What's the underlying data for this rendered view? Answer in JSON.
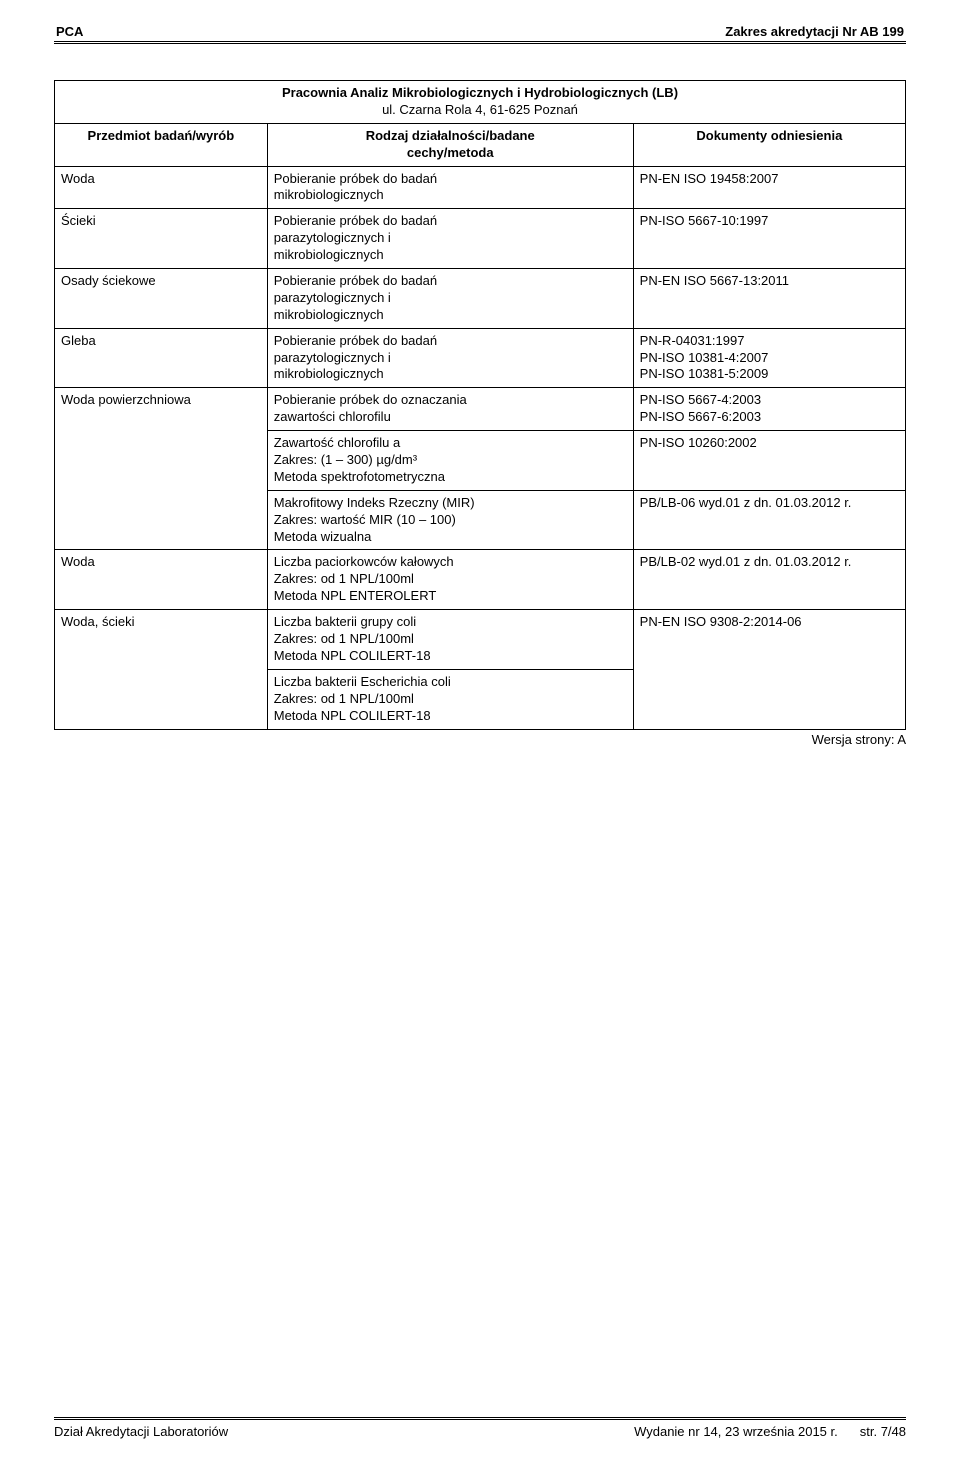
{
  "header": {
    "left": "PCA",
    "right": "Zakres akredytacji Nr AB 199"
  },
  "table": {
    "title_line1": "Pracownia Analiz Mikrobiologicznych i Hydrobiologicznych (LB)",
    "title_line2": "ul. Czarna Rola 4, 61-625 Poznań",
    "headers": {
      "subject": "Przedmiot badań/wyrób",
      "method_line1": "Rodzaj działalności/badane",
      "method_line2": "cechy/metoda",
      "doc": "Dokumenty odniesienia"
    },
    "rows": [
      {
        "subject": "Woda",
        "method": "Pobieranie próbek do badań\nmikrobiologicznych",
        "doc": "PN-EN ISO 19458:2007"
      },
      {
        "subject": "Ścieki",
        "method": "Pobieranie próbek do badań\nparazytologicznych i\nmikrobiologicznych",
        "doc": "PN-ISO 5667-10:1997"
      },
      {
        "subject": "Osady ściekowe",
        "method": "Pobieranie próbek do badań\nparazytologicznych i\nmikrobiologicznych",
        "doc": "PN-EN ISO 5667-13:2011"
      },
      {
        "subject": "Gleba",
        "method": "Pobieranie próbek do badań\nparazytologicznych i\nmikrobiologicznych",
        "doc": "PN-R-04031:1997\nPN-ISO 10381-4:2007\nPN-ISO 10381-5:2009"
      },
      {
        "subject": "Woda powierzchniowa",
        "rowspan": 3,
        "method": "Pobieranie próbek do oznaczania\nzawartości chlorofilu",
        "doc": "PN-ISO 5667-4:2003\nPN-ISO 5667-6:2003"
      },
      {
        "method": "Zawartość chlorofilu a\nZakres: (1 – 300) µg/dm³\nMetoda spektrofotometryczna",
        "doc": "PN-ISO 10260:2002"
      },
      {
        "method": "Makrofitowy Indeks Rzeczny (MIR)\nZakres: wartość MIR (10 – 100)\nMetoda wizualna",
        "doc": "PB/LB-06 wyd.01 z dn. 01.03.2012 r."
      },
      {
        "subject": "Woda",
        "method": "Liczba paciorkowców kałowych\nZakres: od 1 NPL/100ml\nMetoda NPL ENTEROLERT",
        "doc": "PB/LB-02 wyd.01 z dn. 01.03.2012 r."
      },
      {
        "subject": "Woda, ścieki",
        "rowspan": 2,
        "method": "Liczba bakterii grupy coli\nZakres: od 1 NPL/100ml\nMetoda NPL COLILERT-18",
        "doc": "PN-EN ISO 9308-2:2014-06",
        "doc_rowspan": 2
      },
      {
        "method": "Liczba bakterii Escherichia coli\nZakres: od  1 NPL/100ml\nMetoda NPL COLILERT-18"
      }
    ]
  },
  "version_text": "Wersja strony: A",
  "footer": {
    "left": "Dział Akredytacji Laboratoriów",
    "mid": "Wydanie nr 14, 23 września 2015 r.",
    "right": "str. 7/48"
  }
}
